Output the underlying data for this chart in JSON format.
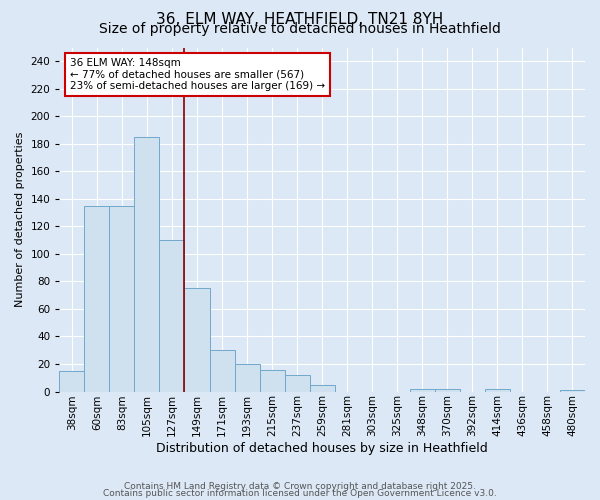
{
  "title1": "36, ELM WAY, HEATHFIELD, TN21 8YH",
  "title2": "Size of property relative to detached houses in Heathfield",
  "xlabel": "Distribution of detached houses by size in Heathfield",
  "ylabel": "Number of detached properties",
  "categories": [
    "38sqm",
    "60sqm",
    "83sqm",
    "105sqm",
    "127sqm",
    "149sqm",
    "171sqm",
    "193sqm",
    "215sqm",
    "237sqm",
    "259sqm",
    "281sqm",
    "303sqm",
    "325sqm",
    "348sqm",
    "370sqm",
    "392sqm",
    "414sqm",
    "436sqm",
    "458sqm",
    "480sqm"
  ],
  "values": [
    15,
    135,
    135,
    185,
    110,
    75,
    30,
    20,
    16,
    12,
    5,
    0,
    0,
    0,
    2,
    2,
    0,
    2,
    0,
    0,
    1
  ],
  "bar_color": "#cfe0ee",
  "bar_edge_color": "#6fa8cc",
  "vline_x": 5,
  "vline_color": "#8b0000",
  "annotation_text": "36 ELM WAY: 148sqm\n← 77% of detached houses are smaller (567)\n23% of semi-detached houses are larger (169) →",
  "annotation_box_facecolor": "#ffffff",
  "annotation_box_edgecolor": "#cc0000",
  "ylim": [
    0,
    250
  ],
  "yticks": [
    0,
    20,
    40,
    60,
    80,
    100,
    120,
    140,
    160,
    180,
    200,
    220,
    240
  ],
  "background_color": "#dce8f5",
  "grid_color": "#ffffff",
  "title1_fontsize": 11,
  "title2_fontsize": 10,
  "xlabel_fontsize": 9,
  "ylabel_fontsize": 8,
  "tick_fontsize": 7.5,
  "annot_fontsize": 7.5,
  "footer1": "Contains HM Land Registry data © Crown copyright and database right 2025.",
  "footer2": "Contains public sector information licensed under the Open Government Licence v3.0.",
  "footer_fontsize": 6.5,
  "footer_color": "#555555"
}
